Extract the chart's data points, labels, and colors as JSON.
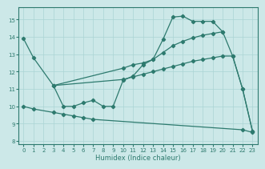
{
  "bg_color": "#cce8e8",
  "grid_color": "#aad4d4",
  "line_color": "#2d7a6e",
  "xlabel": "Humidex (Indice chaleur)",
  "xlim": [
    -0.5,
    23.5
  ],
  "ylim": [
    7.8,
    15.7
  ],
  "yticks": [
    8,
    9,
    10,
    11,
    12,
    13,
    14,
    15
  ],
  "xticks": [
    0,
    1,
    2,
    3,
    4,
    5,
    6,
    7,
    8,
    9,
    10,
    11,
    12,
    13,
    14,
    15,
    16,
    17,
    18,
    19,
    20,
    21,
    22,
    23
  ],
  "line1_x": [
    0,
    1,
    3,
    4,
    5,
    6,
    7,
    8,
    9,
    10,
    11,
    12,
    13,
    14,
    15,
    16,
    17,
    18,
    19,
    20
  ],
  "line1_y": [
    13.9,
    12.8,
    11.2,
    10.0,
    10.0,
    10.2,
    10.35,
    10.0,
    10.0,
    11.5,
    11.75,
    12.4,
    12.7,
    13.85,
    15.15,
    15.2,
    14.9,
    14.9,
    14.9,
    14.3
  ],
  "line2_x": [
    3,
    10,
    11,
    12,
    13,
    14,
    15,
    16,
    17,
    18,
    19,
    20,
    21,
    22,
    23
  ],
  "line2_y": [
    11.2,
    12.2,
    12.4,
    12.5,
    12.7,
    13.1,
    13.5,
    13.75,
    13.95,
    14.1,
    14.2,
    14.3,
    12.9,
    11.0,
    8.55
  ],
  "line3_x": [
    3,
    10,
    11,
    12,
    13,
    14,
    15,
    16,
    17,
    18,
    19,
    20,
    21,
    22,
    23
  ],
  "line3_y": [
    11.2,
    11.55,
    11.7,
    11.85,
    12.0,
    12.15,
    12.3,
    12.45,
    12.6,
    12.7,
    12.8,
    12.9,
    12.9,
    11.0,
    8.55
  ],
  "line4_x": [
    0,
    1,
    3,
    4,
    5,
    6,
    7,
    22,
    23
  ],
  "line4_y": [
    10.0,
    9.85,
    9.65,
    9.55,
    9.45,
    9.35,
    9.25,
    8.65,
    8.5
  ]
}
